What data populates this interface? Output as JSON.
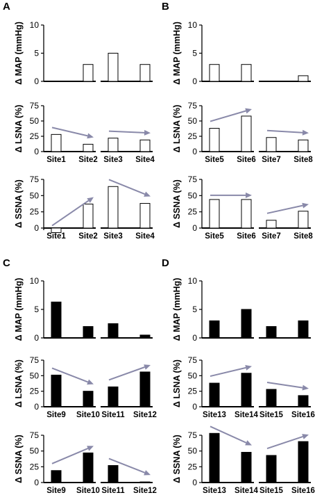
{
  "panels": [
    {
      "letter": "A"
    },
    {
      "letter": "B"
    },
    {
      "letter": "C"
    },
    {
      "letter": "D"
    }
  ],
  "chart_data": [
    {
      "panel": "A",
      "type": "bar",
      "ylabel": "Δ MAP (mmHg)",
      "ylim": [
        0,
        10
      ],
      "yticks": [
        0,
        5,
        10
      ],
      "fill": "white",
      "categories": [
        [
          "Site1",
          "Site2"
        ],
        [
          "Site3",
          "Site4"
        ]
      ],
      "values": [
        [
          0,
          3
        ],
        [
          5,
          3
        ]
      ],
      "category_labels_shown": false
    },
    {
      "panel": "A",
      "type": "bar",
      "ylabel": "Δ LSNA (%)",
      "ylim": [
        0,
        75
      ],
      "yticks": [
        0,
        25,
        50,
        75
      ],
      "fill": "white",
      "categories": [
        [
          "Site1",
          "Site2"
        ],
        [
          "Site3",
          "Site4"
        ]
      ],
      "values": [
        [
          28,
          12
        ],
        [
          22,
          19
        ]
      ],
      "trend": [
        "down",
        "down"
      ],
      "category_labels_shown": true
    },
    {
      "panel": "A",
      "type": "bar",
      "ylabel": "Δ SSNA (%)",
      "ylim": [
        -10,
        75
      ],
      "yticks": [
        0,
        25,
        50,
        75
      ],
      "fill": "white",
      "categories": [
        [
          "Site1",
          "Site2"
        ],
        [
          "Site3",
          "Site4"
        ]
      ],
      "values": [
        [
          -7,
          37
        ],
        [
          64,
          38
        ]
      ],
      "trend": [
        "up",
        "down"
      ],
      "category_labels_shown": true
    },
    {
      "panel": "B",
      "type": "bar",
      "ylabel": "Δ MAP (mmHg)",
      "ylim": [
        0,
        10
      ],
      "yticks": [
        0,
        5,
        10
      ],
      "fill": "white",
      "categories": [
        [
          "Site5",
          "Site6"
        ],
        [
          "Site7",
          "Site8"
        ]
      ],
      "values": [
        [
          3,
          3
        ],
        [
          0,
          1
        ]
      ],
      "category_labels_shown": false
    },
    {
      "panel": "B",
      "type": "bar",
      "ylabel": "Δ LSNA (%)",
      "ylim": [
        0,
        75
      ],
      "yticks": [
        0,
        25,
        50,
        75
      ],
      "fill": "white",
      "categories": [
        [
          "Site5",
          "Site6"
        ],
        [
          "Site7",
          "Site8"
        ]
      ],
      "values": [
        [
          38,
          58
        ],
        [
          23,
          19
        ]
      ],
      "trend": [
        "up",
        "down"
      ],
      "category_labels_shown": true
    },
    {
      "panel": "B",
      "type": "bar",
      "ylabel": "Δ SSNA (%)",
      "ylim": [
        0,
        75
      ],
      "yticks": [
        0,
        25,
        50,
        75
      ],
      "fill": "white",
      "categories": [
        [
          "Site5",
          "Site6"
        ],
        [
          "Site7",
          "Site8"
        ]
      ],
      "values": [
        [
          44,
          44
        ],
        [
          12,
          26
        ]
      ],
      "trend": [
        "flat",
        "up"
      ],
      "category_labels_shown": true
    },
    {
      "panel": "C",
      "type": "bar",
      "ylabel": "Δ MAP (mmHg)",
      "ylim": [
        0,
        10
      ],
      "yticks": [
        0,
        5,
        10
      ],
      "fill": "black",
      "categories": [
        [
          "Site9",
          "Site10"
        ],
        [
          "Site11",
          "Site12"
        ]
      ],
      "values": [
        [
          6.3,
          2
        ],
        [
          2.5,
          0.5
        ]
      ],
      "category_labels_shown": false
    },
    {
      "panel": "C",
      "type": "bar",
      "ylabel": "Δ LSNA (%)",
      "ylim": [
        0,
        75
      ],
      "yticks": [
        0,
        25,
        50,
        75
      ],
      "fill": "black",
      "categories": [
        [
          "Site9",
          "Site10"
        ],
        [
          "Site11",
          "Site12"
        ]
      ],
      "values": [
        [
          51,
          25
        ],
        [
          32,
          56
        ]
      ],
      "trend": [
        "down",
        "up"
      ],
      "category_labels_shown": true
    },
    {
      "panel": "C",
      "type": "bar",
      "ylabel": "Δ SSNA (%)",
      "ylim": [
        0,
        75
      ],
      "yticks": [
        0,
        25,
        50,
        75
      ],
      "fill": "black",
      "categories": [
        [
          "Site9",
          "Site10"
        ],
        [
          "Site11",
          "Site12"
        ]
      ],
      "values": [
        [
          19,
          47
        ],
        [
          27,
          1
        ]
      ],
      "trend": [
        "up",
        "down"
      ],
      "category_labels_shown": true
    },
    {
      "panel": "D",
      "type": "bar",
      "ylabel": "Δ MAP (mmHg)",
      "ylim": [
        0,
        10
      ],
      "yticks": [
        0,
        5,
        10
      ],
      "fill": "black",
      "categories": [
        [
          "Site13",
          "Site14"
        ],
        [
          "Site15",
          "Site16"
        ]
      ],
      "values": [
        [
          3,
          5
        ],
        [
          2,
          3
        ]
      ],
      "category_labels_shown": false
    },
    {
      "panel": "D",
      "type": "bar",
      "ylabel": "Δ LSNA (%)",
      "ylim": [
        0,
        75
      ],
      "yticks": [
        0,
        25,
        50,
        75
      ],
      "fill": "black",
      "categories": [
        [
          "Site13",
          "Site14"
        ],
        [
          "Site15",
          "Site16"
        ]
      ],
      "values": [
        [
          38,
          54
        ],
        [
          28,
          18
        ]
      ],
      "trend": [
        "up",
        "down"
      ],
      "category_labels_shown": true
    },
    {
      "panel": "D",
      "type": "bar",
      "ylabel": "Δ SSNA (%)",
      "ylim": [
        0,
        75
      ],
      "yticks": [
        0,
        25,
        50,
        75
      ],
      "fill": "black",
      "categories": [
        [
          "Site13",
          "Site14"
        ],
        [
          "Site15",
          "Site16"
        ]
      ],
      "values": [
        [
          78,
          48
        ],
        [
          43,
          65
        ]
      ],
      "trend": [
        "down",
        "up"
      ],
      "category_labels_shown": true
    }
  ],
  "colors": {
    "arrow": "#8989a9",
    "axis": "#000000",
    "bar_outline": "#000000"
  }
}
